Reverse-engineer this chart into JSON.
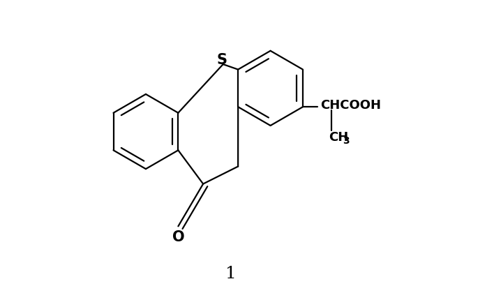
{
  "bg_color": "#ffffff",
  "line_color": "#000000",
  "line_width": 1.6,
  "fig_width": 7.18,
  "fig_height": 4.2,
  "dpi": 100,
  "label_1": "1",
  "label_S": "S",
  "label_O": "O",
  "label_CHCOOH": "CHCOOH",
  "label_CH3": "CH",
  "label_3": "3"
}
